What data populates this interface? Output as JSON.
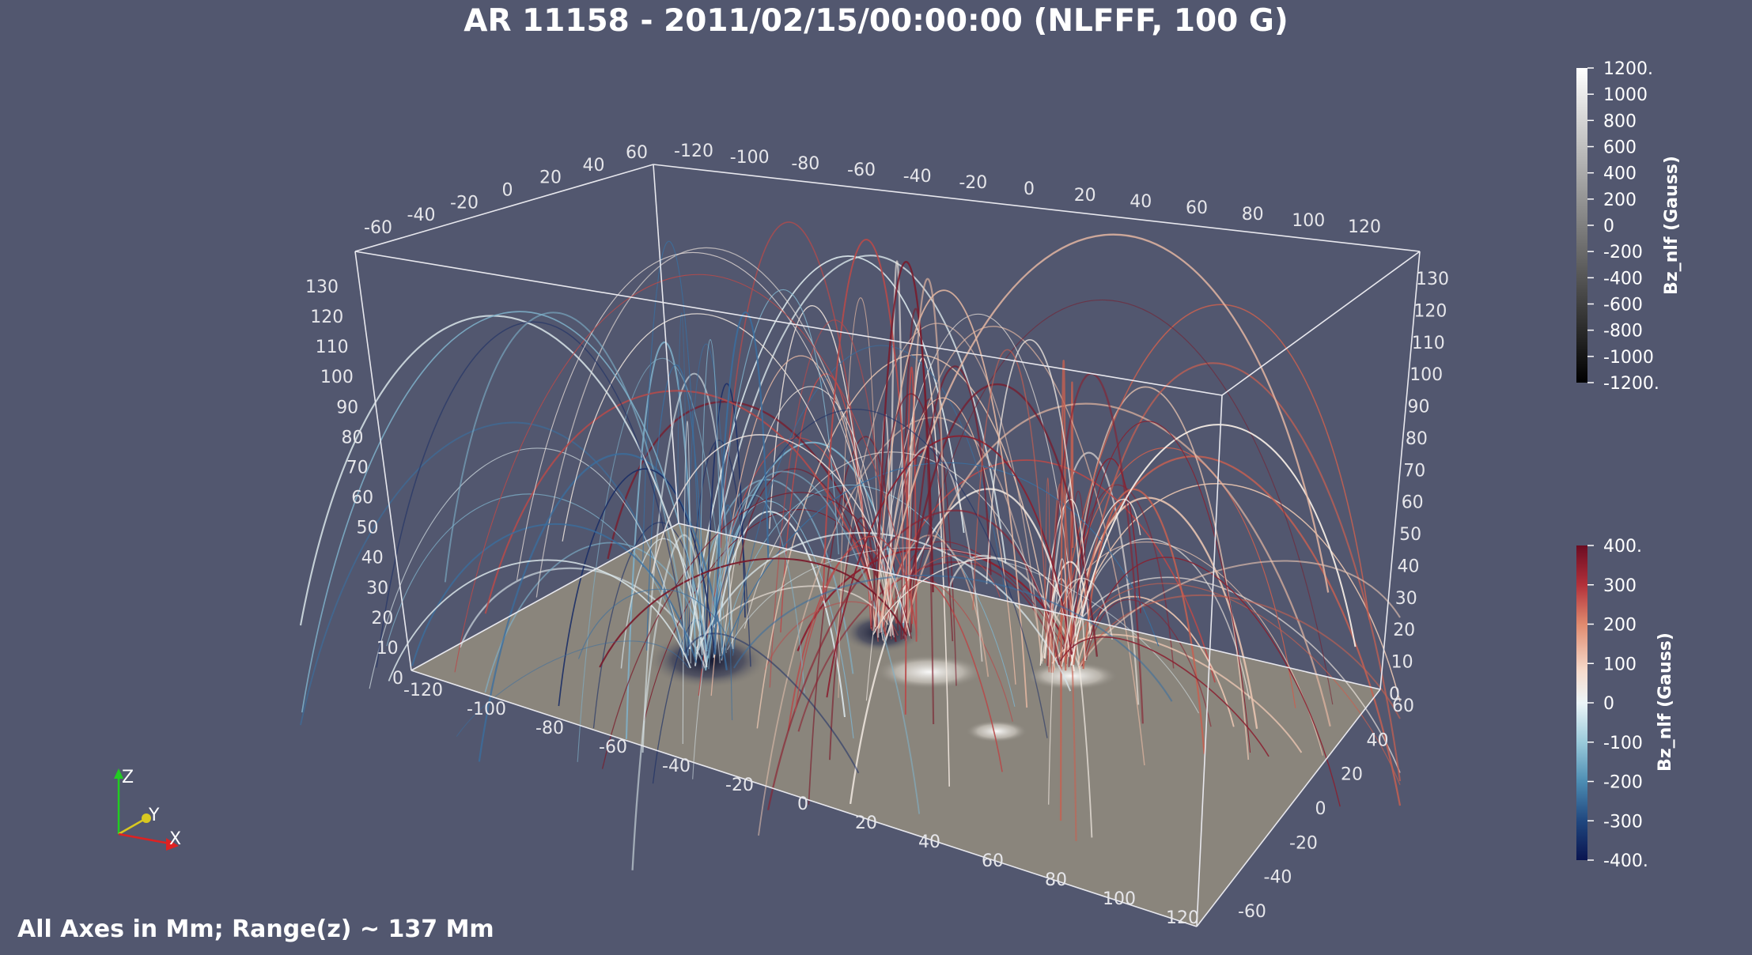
{
  "title": "AR 11158 - 2011/02/15/00:00:00 (NLFFF, 100 G)",
  "footer": "All Axes in Mm; Range(z) ~ 137 Mm",
  "axes": {
    "x_ticks": [
      "-120",
      "-100",
      "-80",
      "-60",
      "-40",
      "-20",
      "0",
      "20",
      "40",
      "60",
      "80",
      "100",
      "120"
    ],
    "y_ticks": [
      "-60",
      "-40",
      "-20",
      "0",
      "20",
      "40",
      "60"
    ],
    "z_ticks": [
      "0",
      "10",
      "20",
      "30",
      "40",
      "50",
      "60",
      "70",
      "80",
      "90",
      "100",
      "110",
      "120",
      "130"
    ]
  },
  "colorbar_photosphere": {
    "title": "Bz_nlf (Gauss)",
    "labels": [
      "1200.",
      "1000",
      "800",
      "600",
      "400",
      "200",
      "0",
      "-200",
      "-400",
      "-600",
      "-800",
      "-1000",
      "-1200."
    ],
    "colors": [
      "#ffffff",
      "#000000"
    ]
  },
  "colorbar_fieldlines": {
    "title": "Bz_nlf (Gauss)",
    "labels": [
      "400.",
      "300",
      "200",
      "100",
      "0",
      "-100",
      "-200",
      "-300",
      "-400."
    ],
    "colors": [
      "#6b0c22",
      "#b2303a",
      "#e08a6e",
      "#f7dccd",
      "#ecf5f8",
      "#9bcbdb",
      "#4d8db3",
      "#20477f",
      "#0a1550"
    ]
  },
  "orientation": {
    "z": "Z",
    "y": "Y",
    "x": "X"
  }
}
